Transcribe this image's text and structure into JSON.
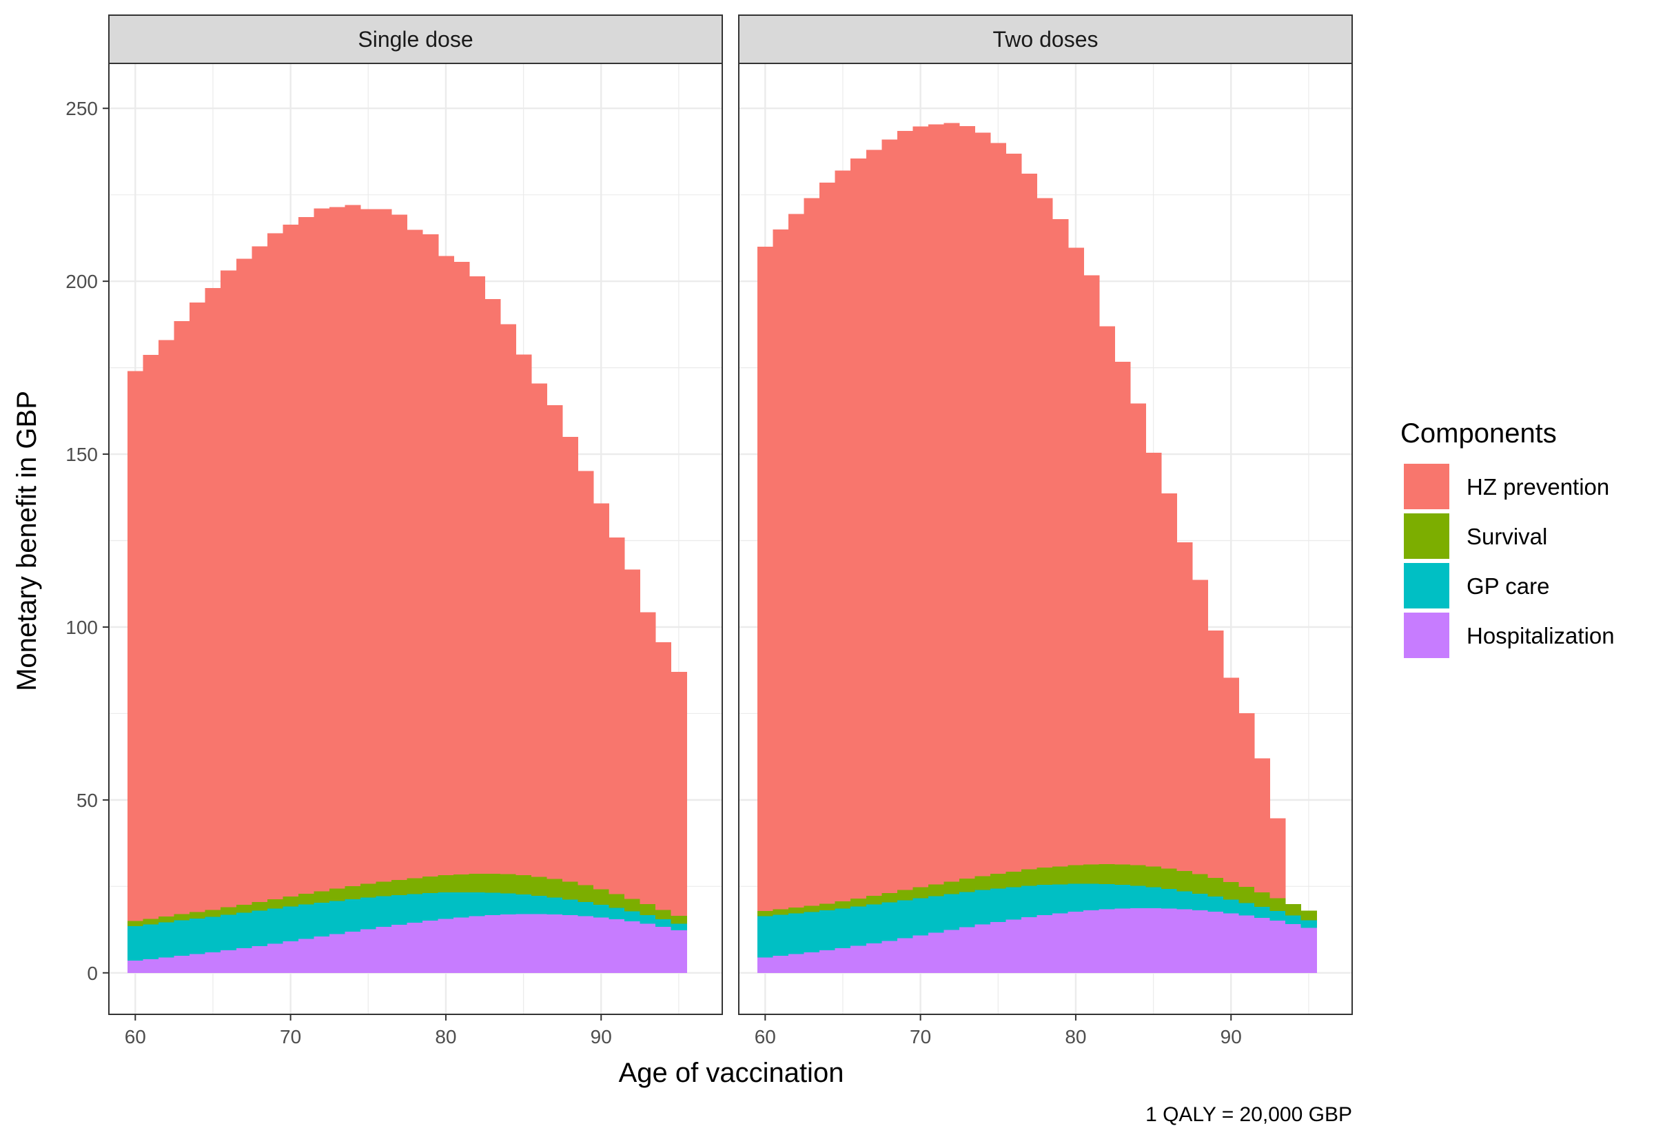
{
  "chart_data": {
    "type": "area",
    "x_label": "Age of vaccination",
    "y_label": "Monetary benefit in GBP",
    "caption": "1 QALY = 20,000 GBP",
    "legend_title": "Components",
    "legend_position": "right",
    "grid": true,
    "xlim": [
      58.3,
      97.8
    ],
    "ylim": [
      -12,
      263
    ],
    "x_ticks": [
      60,
      70,
      80,
      90
    ],
    "y_ticks": [
      0,
      50,
      100,
      150,
      200,
      250
    ],
    "x_tick_labels": [
      "60",
      "70",
      "80",
      "90"
    ],
    "y_tick_labels": [
      "0",
      "50",
      "100",
      "150",
      "200",
      "250"
    ],
    "stack_order": [
      "Hospitalization",
      "GP care",
      "Survival",
      "HZ prevention"
    ],
    "legend": [
      {
        "name": "HZ prevention",
        "color": "#F8766D"
      },
      {
        "name": "Survival",
        "color": "#7CAE00"
      },
      {
        "name": "GP care",
        "color": "#00BFC4"
      },
      {
        "name": "Hospitalization",
        "color": "#C77CFF"
      }
    ],
    "ages": [
      60,
      61,
      62,
      63,
      64,
      65,
      66,
      67,
      68,
      69,
      70,
      71,
      72,
      73,
      74,
      75,
      76,
      77,
      78,
      79,
      80,
      81,
      82,
      83,
      84,
      85,
      86,
      87,
      88,
      89,
      90,
      91,
      92,
      93,
      94,
      95
    ],
    "panels": [
      {
        "title": "Single dose",
        "series": [
          {
            "name": "Hospitalization",
            "values": [
              3.6,
              4.0,
              4.5,
              5.0,
              5.5,
              6.0,
              6.6,
              7.2,
              7.8,
              8.5,
              9.2,
              9.9,
              10.6,
              11.3,
              12.0,
              12.7,
              13.4,
              14.0,
              14.6,
              15.2,
              15.7,
              16.1,
              16.5,
              16.8,
              17.0,
              17.1,
              17.1,
              17.0,
              16.8,
              16.5,
              16.1,
              15.6,
              15.0,
              14.3,
              13.4,
              12.4
            ]
          },
          {
            "name": "GP care",
            "values": [
              10.0,
              10.1,
              10.2,
              10.3,
              10.3,
              10.3,
              10.3,
              10.3,
              10.3,
              10.2,
              10.1,
              10.0,
              9.8,
              9.6,
              9.4,
              9.2,
              8.9,
              8.6,
              8.3,
              8.0,
              7.7,
              7.3,
              6.9,
              6.5,
              6.1,
              5.7,
              5.3,
              4.9,
              4.5,
              4.1,
              3.7,
              3.3,
              2.9,
              2.5,
              2.2,
              1.9
            ]
          },
          {
            "name": "Survival",
            "values": [
              1.5,
              1.6,
              1.7,
              1.8,
              1.9,
              2.0,
              2.2,
              2.3,
              2.5,
              2.7,
              2.9,
              3.1,
              3.3,
              3.5,
              3.7,
              3.9,
              4.1,
              4.3,
              4.5,
              4.7,
              4.9,
              5.1,
              5.3,
              5.4,
              5.5,
              5.5,
              5.4,
              5.3,
              5.1,
              4.8,
              4.4,
              4.0,
              3.6,
              3.2,
              2.7,
              2.3
            ]
          },
          {
            "name": "HZ prevention",
            "values": [
              158.9,
              163.0,
              166.6,
              171.4,
              176.2,
              179.7,
              184.0,
              186.7,
              189.5,
              192.5,
              194.2,
              195.6,
              197.4,
              197.1,
              196.9,
              195.1,
              194.5,
              192.4,
              187.5,
              185.7,
              179.0,
              177.1,
              172.7,
              166.1,
              159.0,
              150.5,
              142.6,
              137.0,
              128.6,
              119.7,
              111.6,
              103.0,
              95.1,
              84.3,
              77.3,
              70.4
            ]
          }
        ]
      },
      {
        "title": "Two doses",
        "series": [
          {
            "name": "Hospitalization",
            "values": [
              4.5,
              5.0,
              5.5,
              6.0,
              6.6,
              7.2,
              7.9,
              8.6,
              9.3,
              10.1,
              10.9,
              11.7,
              12.5,
              13.3,
              14.1,
              14.8,
              15.5,
              16.2,
              16.8,
              17.3,
              17.8,
              18.2,
              18.5,
              18.7,
              18.8,
              18.8,
              18.7,
              18.5,
              18.2,
              17.8,
              17.3,
              16.7,
              16.0,
              15.2,
              14.2,
              13.1
            ]
          },
          {
            "name": "GP care",
            "values": [
              12.0,
              11.9,
              11.8,
              11.7,
              11.6,
              11.5,
              11.4,
              11.3,
              11.2,
              11.0,
              10.8,
              10.6,
              10.4,
              10.2,
              9.9,
              9.6,
              9.3,
              9.0,
              8.7,
              8.3,
              8.0,
              7.6,
              7.2,
              6.8,
              6.4,
              6.0,
              5.6,
              5.2,
              4.8,
              4.4,
              4.0,
              3.6,
              3.2,
              2.8,
              2.5,
              2.2
            ]
          },
          {
            "name": "Survival",
            "values": [
              1.5,
              1.6,
              1.7,
              1.8,
              1.9,
              2.1,
              2.3,
              2.5,
              2.7,
              2.9,
              3.1,
              3.3,
              3.5,
              3.8,
              4.0,
              4.3,
              4.5,
              4.8,
              5.0,
              5.2,
              5.4,
              5.6,
              5.8,
              5.9,
              6.0,
              6.0,
              5.9,
              5.8,
              5.6,
              5.3,
              5.0,
              4.6,
              4.2,
              3.7,
              3.2,
              2.7
            ]
          },
          {
            "name": "HZ prevention",
            "values": [
              192.0,
              196.5,
              200.5,
              204.5,
              208.4,
              211.2,
              213.9,
              215.6,
              217.8,
              219.5,
              220.0,
              219.8,
              219.4,
              217.6,
              215.0,
              211.3,
              207.6,
              201.1,
              193.5,
              187.2,
              178.5,
              170.3,
              155.5,
              145.3,
              133.5,
              119.6,
              108.5,
              95.0,
              85.0,
              71.5,
              59.0,
              50.2,
              38.6,
              23.0,
              0,
              0
            ]
          }
        ]
      }
    ]
  }
}
